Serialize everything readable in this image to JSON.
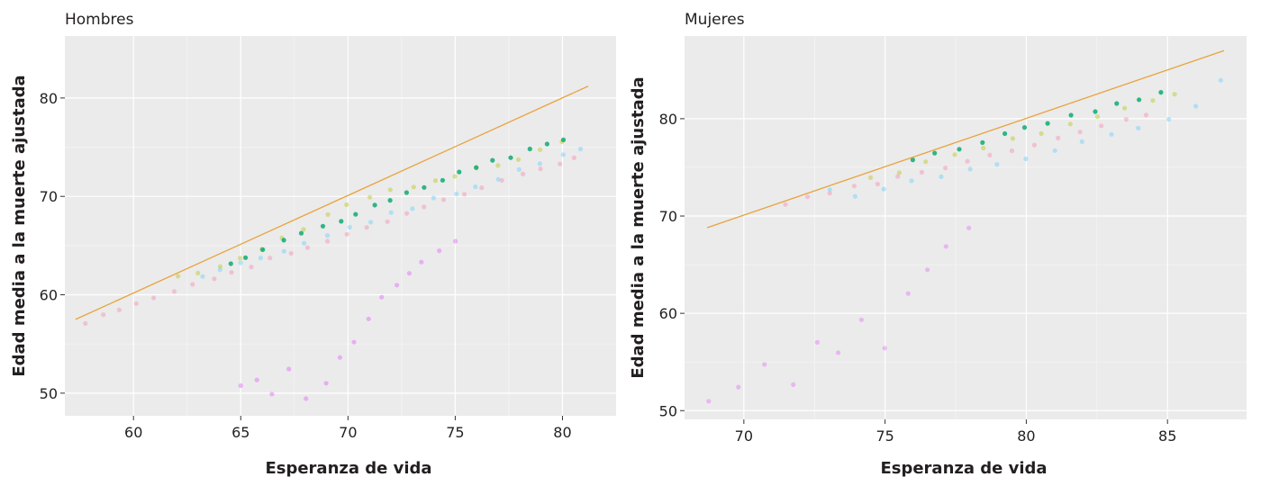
{
  "chart_data": [
    {
      "type": "scatter",
      "title": "Hombres",
      "xlabel": "Esperanza de vida",
      "ylabel": "Edad media a la muerte ajustada",
      "xlim": [
        56.8,
        82.5
      ],
      "ylim": [
        47.7,
        86.3
      ],
      "xticks": [
        60,
        65,
        70,
        75,
        80
      ],
      "yticks": [
        50,
        60,
        70,
        80
      ],
      "grid": true,
      "reference_line": {
        "color": "#e8a33d",
        "x": [
          57.3,
          81.2
        ],
        "y": [
          57.5,
          81.2
        ]
      },
      "series": [
        {
          "color": "#f48fb1",
          "alpha": 0.45,
          "x": [
            57.8,
            58.6,
            59.3,
            60.1,
            61.0,
            61.9,
            62.8,
            63.7,
            64.6,
            65.5,
            66.4,
            67.3,
            68.2,
            69.1,
            70.0,
            70.9,
            71.8,
            72.7,
            73.6,
            74.5,
            75.4,
            76.3,
            77.2,
            78.1,
            79.0,
            79.9,
            80.5
          ],
          "y": [
            57.2,
            57.9,
            58.4,
            59.0,
            59.7,
            60.3,
            60.9,
            61.6,
            62.3,
            62.9,
            63.6,
            64.2,
            64.9,
            65.5,
            66.2,
            66.9,
            67.5,
            68.2,
            68.8,
            69.5,
            70.1,
            70.8,
            71.5,
            72.1,
            72.8,
            73.4,
            74.0
          ]
        },
        {
          "color": "#e040fb",
          "alpha": 0.35,
          "x": [
            65.0,
            65.7,
            66.5,
            67.3,
            68.1,
            68.9,
            69.6,
            70.3,
            71.0,
            71.6,
            72.2,
            72.8,
            73.5,
            74.2,
            75.0
          ],
          "y": [
            50.8,
            51.2,
            49.9,
            52.4,
            49.3,
            51.0,
            53.7,
            55.2,
            57.6,
            59.8,
            61.0,
            62.3,
            63.5,
            64.6,
            65.3
          ]
        },
        {
          "color": "#81d4fa",
          "alpha": 0.55,
          "x": [
            63.2,
            64.1,
            65.0,
            66.0,
            67.0,
            68.0,
            69.0,
            70.0,
            71.0,
            72.0,
            73.0,
            74.0,
            75.0,
            76.0,
            77.0,
            78.0,
            79.0,
            80.0,
            80.8
          ],
          "y": [
            61.9,
            62.4,
            63.1,
            63.8,
            64.3,
            65.1,
            65.9,
            66.7,
            67.4,
            68.2,
            68.9,
            69.7,
            70.4,
            71.1,
            71.9,
            72.6,
            73.3,
            74.1,
            74.9
          ]
        },
        {
          "color": "#c0ca33",
          "alpha": 0.5,
          "x": [
            62.0,
            63.0,
            64.0,
            65.0,
            66.0,
            67.0,
            68.0,
            69.0,
            70.0,
            71.0,
            72.0,
            73.0,
            74.0,
            75.0,
            76.0,
            77.0,
            78.0,
            79.0,
            80.0
          ],
          "y": [
            61.8,
            62.3,
            62.9,
            63.6,
            64.5,
            65.6,
            66.8,
            68.1,
            69.2,
            69.9,
            70.5,
            71.1,
            71.6,
            72.1,
            72.7,
            73.3,
            73.9,
            74.6,
            75.4
          ]
        },
        {
          "color": "#00a86b",
          "alpha": 0.8,
          "x": [
            64.5,
            65.3,
            66.1,
            67.0,
            67.9,
            68.8,
            69.6,
            70.4,
            71.2,
            72.0,
            72.8,
            73.6,
            74.4,
            75.2,
            76.0,
            76.8,
            77.6,
            78.4,
            79.2,
            80.0
          ],
          "y": [
            63.2,
            63.9,
            64.6,
            65.4,
            66.1,
            66.9,
            67.6,
            68.3,
            69.0,
            69.7,
            70.4,
            71.0,
            71.7,
            72.3,
            72.9,
            73.5,
            74.1,
            74.7,
            75.3,
            75.9
          ]
        }
      ]
    },
    {
      "type": "scatter",
      "title": "Mujeres",
      "xlabel": "Esperanza de vida",
      "ylabel": "Edad media a la muerte ajustada",
      "xlim": [
        67.9,
        87.8
      ],
      "ylim": [
        49.1,
        88.5
      ],
      "xticks": [
        70,
        75,
        80,
        85
      ],
      "yticks": [
        50,
        60,
        70,
        80
      ],
      "grid": true,
      "reference_line": {
        "color": "#e8a33d",
        "x": [
          68.7,
          87.0
        ],
        "y": [
          68.8,
          87.0
        ]
      },
      "series": [
        {
          "color": "#f48fb1",
          "alpha": 0.45,
          "x": [
            71.5,
            72.3,
            73.1,
            73.9,
            74.7,
            75.5,
            76.3,
            77.1,
            77.9,
            78.7,
            79.5,
            80.3,
            81.1,
            81.9,
            82.7,
            83.5,
            84.3
          ],
          "y": [
            71.2,
            71.8,
            72.4,
            72.9,
            73.4,
            73.9,
            74.5,
            75.1,
            75.7,
            76.2,
            76.8,
            77.4,
            78.0,
            78.6,
            79.2,
            79.8,
            80.4
          ]
        },
        {
          "color": "#e040fb",
          "alpha": 0.3,
          "x": [
            68.8,
            69.8,
            70.7,
            71.7,
            72.6,
            73.4,
            74.2,
            75.0,
            75.8,
            76.5,
            77.2,
            78.0
          ],
          "y": [
            51.0,
            52.6,
            54.9,
            52.5,
            57.0,
            55.8,
            59.5,
            56.5,
            62.0,
            64.5,
            66.7,
            68.9
          ]
        },
        {
          "color": "#81d4fa",
          "alpha": 0.55,
          "x": [
            73.0,
            74.0,
            75.0,
            76.0,
            77.0,
            78.0,
            79.0,
            80.0,
            81.0,
            82.0,
            83.0,
            84.0,
            85.0,
            86.0,
            86.9
          ],
          "y": [
            72.6,
            72.1,
            72.8,
            73.5,
            74.1,
            74.7,
            75.4,
            76.0,
            76.7,
            77.5,
            78.3,
            79.1,
            80.0,
            81.2,
            84.0
          ]
        },
        {
          "color": "#c0ca33",
          "alpha": 0.5,
          "x": [
            74.5,
            75.5,
            76.5,
            77.5,
            78.5,
            79.5,
            80.5,
            81.5,
            82.5,
            83.5,
            84.5,
            85.3
          ],
          "y": [
            73.8,
            74.6,
            75.4,
            76.2,
            77.0,
            77.8,
            78.6,
            79.4,
            80.2,
            81.0,
            81.8,
            82.6
          ]
        },
        {
          "color": "#00a86b",
          "alpha": 0.8,
          "x": [
            76.0,
            76.8,
            77.6,
            78.4,
            79.2,
            80.0,
            80.8,
            81.6,
            82.4,
            83.2,
            84.0,
            84.8
          ],
          "y": [
            75.6,
            76.3,
            77.0,
            77.6,
            78.3,
            79.0,
            79.6,
            80.3,
            80.9,
            81.5,
            82.1,
            82.7
          ]
        }
      ]
    }
  ]
}
